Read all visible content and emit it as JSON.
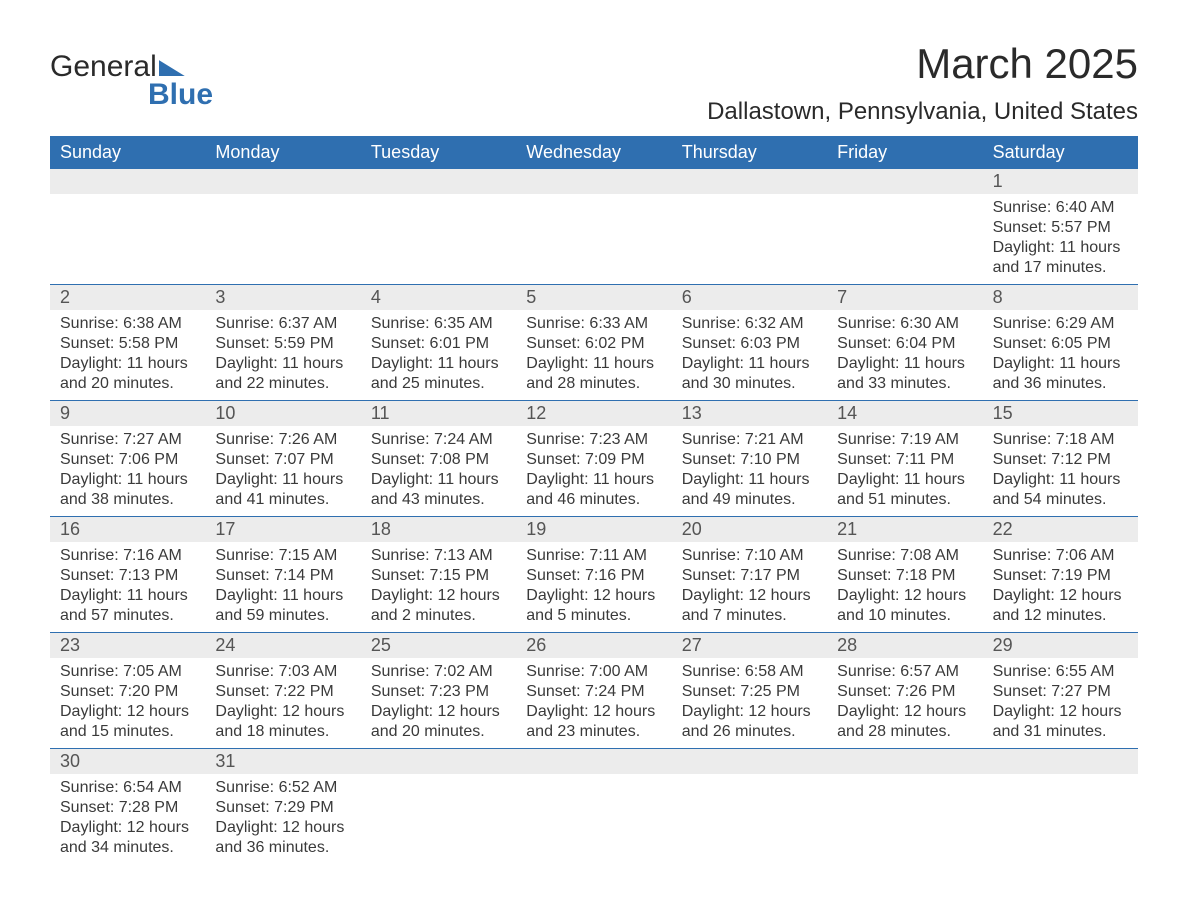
{
  "logo": {
    "part1": "General",
    "part2": "Blue"
  },
  "title": "March 2025",
  "location": "Dallastown, Pennsylvania, United States",
  "colors": {
    "header_bg": "#2f6fb0",
    "header_text": "#ffffff",
    "daynum_bg": "#ececec",
    "daynum_text": "#555555",
    "body_text": "#3a3a3a",
    "title_text": "#2a2a2a",
    "logo_blue": "#2f6fb0",
    "row_border": "#2f6fb0",
    "background": "#ffffff"
  },
  "typography": {
    "title_fontsize": 42,
    "location_fontsize": 24,
    "dayheader_fontsize": 18,
    "daynum_fontsize": 18,
    "details_fontsize": 16,
    "font_family": "Arial"
  },
  "day_headers": [
    "Sunday",
    "Monday",
    "Tuesday",
    "Wednesday",
    "Thursday",
    "Friday",
    "Saturday"
  ],
  "weeks": [
    [
      null,
      null,
      null,
      null,
      null,
      null,
      {
        "day": "1",
        "sunrise": "Sunrise: 6:40 AM",
        "sunset": "Sunset: 5:57 PM",
        "daylight": "Daylight: 11 hours and 17 minutes."
      }
    ],
    [
      {
        "day": "2",
        "sunrise": "Sunrise: 6:38 AM",
        "sunset": "Sunset: 5:58 PM",
        "daylight": "Daylight: 11 hours and 20 minutes."
      },
      {
        "day": "3",
        "sunrise": "Sunrise: 6:37 AM",
        "sunset": "Sunset: 5:59 PM",
        "daylight": "Daylight: 11 hours and 22 minutes."
      },
      {
        "day": "4",
        "sunrise": "Sunrise: 6:35 AM",
        "sunset": "Sunset: 6:01 PM",
        "daylight": "Daylight: 11 hours and 25 minutes."
      },
      {
        "day": "5",
        "sunrise": "Sunrise: 6:33 AM",
        "sunset": "Sunset: 6:02 PM",
        "daylight": "Daylight: 11 hours and 28 minutes."
      },
      {
        "day": "6",
        "sunrise": "Sunrise: 6:32 AM",
        "sunset": "Sunset: 6:03 PM",
        "daylight": "Daylight: 11 hours and 30 minutes."
      },
      {
        "day": "7",
        "sunrise": "Sunrise: 6:30 AM",
        "sunset": "Sunset: 6:04 PM",
        "daylight": "Daylight: 11 hours and 33 minutes."
      },
      {
        "day": "8",
        "sunrise": "Sunrise: 6:29 AM",
        "sunset": "Sunset: 6:05 PM",
        "daylight": "Daylight: 11 hours and 36 minutes."
      }
    ],
    [
      {
        "day": "9",
        "sunrise": "Sunrise: 7:27 AM",
        "sunset": "Sunset: 7:06 PM",
        "daylight": "Daylight: 11 hours and 38 minutes."
      },
      {
        "day": "10",
        "sunrise": "Sunrise: 7:26 AM",
        "sunset": "Sunset: 7:07 PM",
        "daylight": "Daylight: 11 hours and 41 minutes."
      },
      {
        "day": "11",
        "sunrise": "Sunrise: 7:24 AM",
        "sunset": "Sunset: 7:08 PM",
        "daylight": "Daylight: 11 hours and 43 minutes."
      },
      {
        "day": "12",
        "sunrise": "Sunrise: 7:23 AM",
        "sunset": "Sunset: 7:09 PM",
        "daylight": "Daylight: 11 hours and 46 minutes."
      },
      {
        "day": "13",
        "sunrise": "Sunrise: 7:21 AM",
        "sunset": "Sunset: 7:10 PM",
        "daylight": "Daylight: 11 hours and 49 minutes."
      },
      {
        "day": "14",
        "sunrise": "Sunrise: 7:19 AM",
        "sunset": "Sunset: 7:11 PM",
        "daylight": "Daylight: 11 hours and 51 minutes."
      },
      {
        "day": "15",
        "sunrise": "Sunrise: 7:18 AM",
        "sunset": "Sunset: 7:12 PM",
        "daylight": "Daylight: 11 hours and 54 minutes."
      }
    ],
    [
      {
        "day": "16",
        "sunrise": "Sunrise: 7:16 AM",
        "sunset": "Sunset: 7:13 PM",
        "daylight": "Daylight: 11 hours and 57 minutes."
      },
      {
        "day": "17",
        "sunrise": "Sunrise: 7:15 AM",
        "sunset": "Sunset: 7:14 PM",
        "daylight": "Daylight: 11 hours and 59 minutes."
      },
      {
        "day": "18",
        "sunrise": "Sunrise: 7:13 AM",
        "sunset": "Sunset: 7:15 PM",
        "daylight": "Daylight: 12 hours and 2 minutes."
      },
      {
        "day": "19",
        "sunrise": "Sunrise: 7:11 AM",
        "sunset": "Sunset: 7:16 PM",
        "daylight": "Daylight: 12 hours and 5 minutes."
      },
      {
        "day": "20",
        "sunrise": "Sunrise: 7:10 AM",
        "sunset": "Sunset: 7:17 PM",
        "daylight": "Daylight: 12 hours and 7 minutes."
      },
      {
        "day": "21",
        "sunrise": "Sunrise: 7:08 AM",
        "sunset": "Sunset: 7:18 PM",
        "daylight": "Daylight: 12 hours and 10 minutes."
      },
      {
        "day": "22",
        "sunrise": "Sunrise: 7:06 AM",
        "sunset": "Sunset: 7:19 PM",
        "daylight": "Daylight: 12 hours and 12 minutes."
      }
    ],
    [
      {
        "day": "23",
        "sunrise": "Sunrise: 7:05 AM",
        "sunset": "Sunset: 7:20 PM",
        "daylight": "Daylight: 12 hours and 15 minutes."
      },
      {
        "day": "24",
        "sunrise": "Sunrise: 7:03 AM",
        "sunset": "Sunset: 7:22 PM",
        "daylight": "Daylight: 12 hours and 18 minutes."
      },
      {
        "day": "25",
        "sunrise": "Sunrise: 7:02 AM",
        "sunset": "Sunset: 7:23 PM",
        "daylight": "Daylight: 12 hours and 20 minutes."
      },
      {
        "day": "26",
        "sunrise": "Sunrise: 7:00 AM",
        "sunset": "Sunset: 7:24 PM",
        "daylight": "Daylight: 12 hours and 23 minutes."
      },
      {
        "day": "27",
        "sunrise": "Sunrise: 6:58 AM",
        "sunset": "Sunset: 7:25 PM",
        "daylight": "Daylight: 12 hours and 26 minutes."
      },
      {
        "day": "28",
        "sunrise": "Sunrise: 6:57 AM",
        "sunset": "Sunset: 7:26 PM",
        "daylight": "Daylight: 12 hours and 28 minutes."
      },
      {
        "day": "29",
        "sunrise": "Sunrise: 6:55 AM",
        "sunset": "Sunset: 7:27 PM",
        "daylight": "Daylight: 12 hours and 31 minutes."
      }
    ],
    [
      {
        "day": "30",
        "sunrise": "Sunrise: 6:54 AM",
        "sunset": "Sunset: 7:28 PM",
        "daylight": "Daylight: 12 hours and 34 minutes."
      },
      {
        "day": "31",
        "sunrise": "Sunrise: 6:52 AM",
        "sunset": "Sunset: 7:29 PM",
        "daylight": "Daylight: 12 hours and 36 minutes."
      },
      null,
      null,
      null,
      null,
      null
    ]
  ]
}
